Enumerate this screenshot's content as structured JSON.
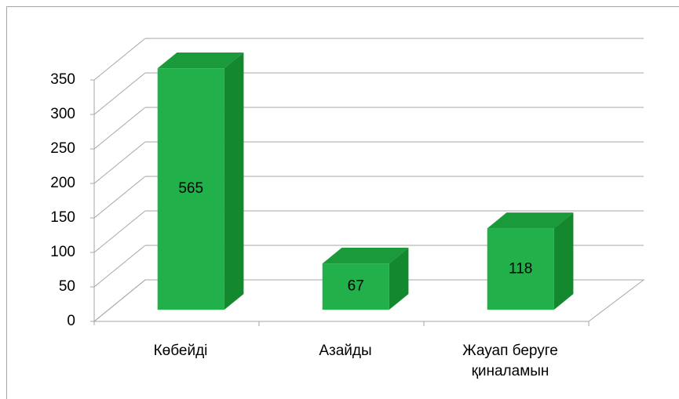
{
  "chart_data": {
    "type": "bar3d",
    "categories": [
      "Көбейді",
      "Азайды",
      "Жауап беруге қиналамын"
    ],
    "values": [
      565,
      67,
      118
    ],
    "color": "#22b04a",
    "ylim": [
      0,
      350
    ],
    "yticks": [
      0,
      50,
      100,
      150,
      200,
      250,
      300,
      350
    ],
    "grid": true
  }
}
